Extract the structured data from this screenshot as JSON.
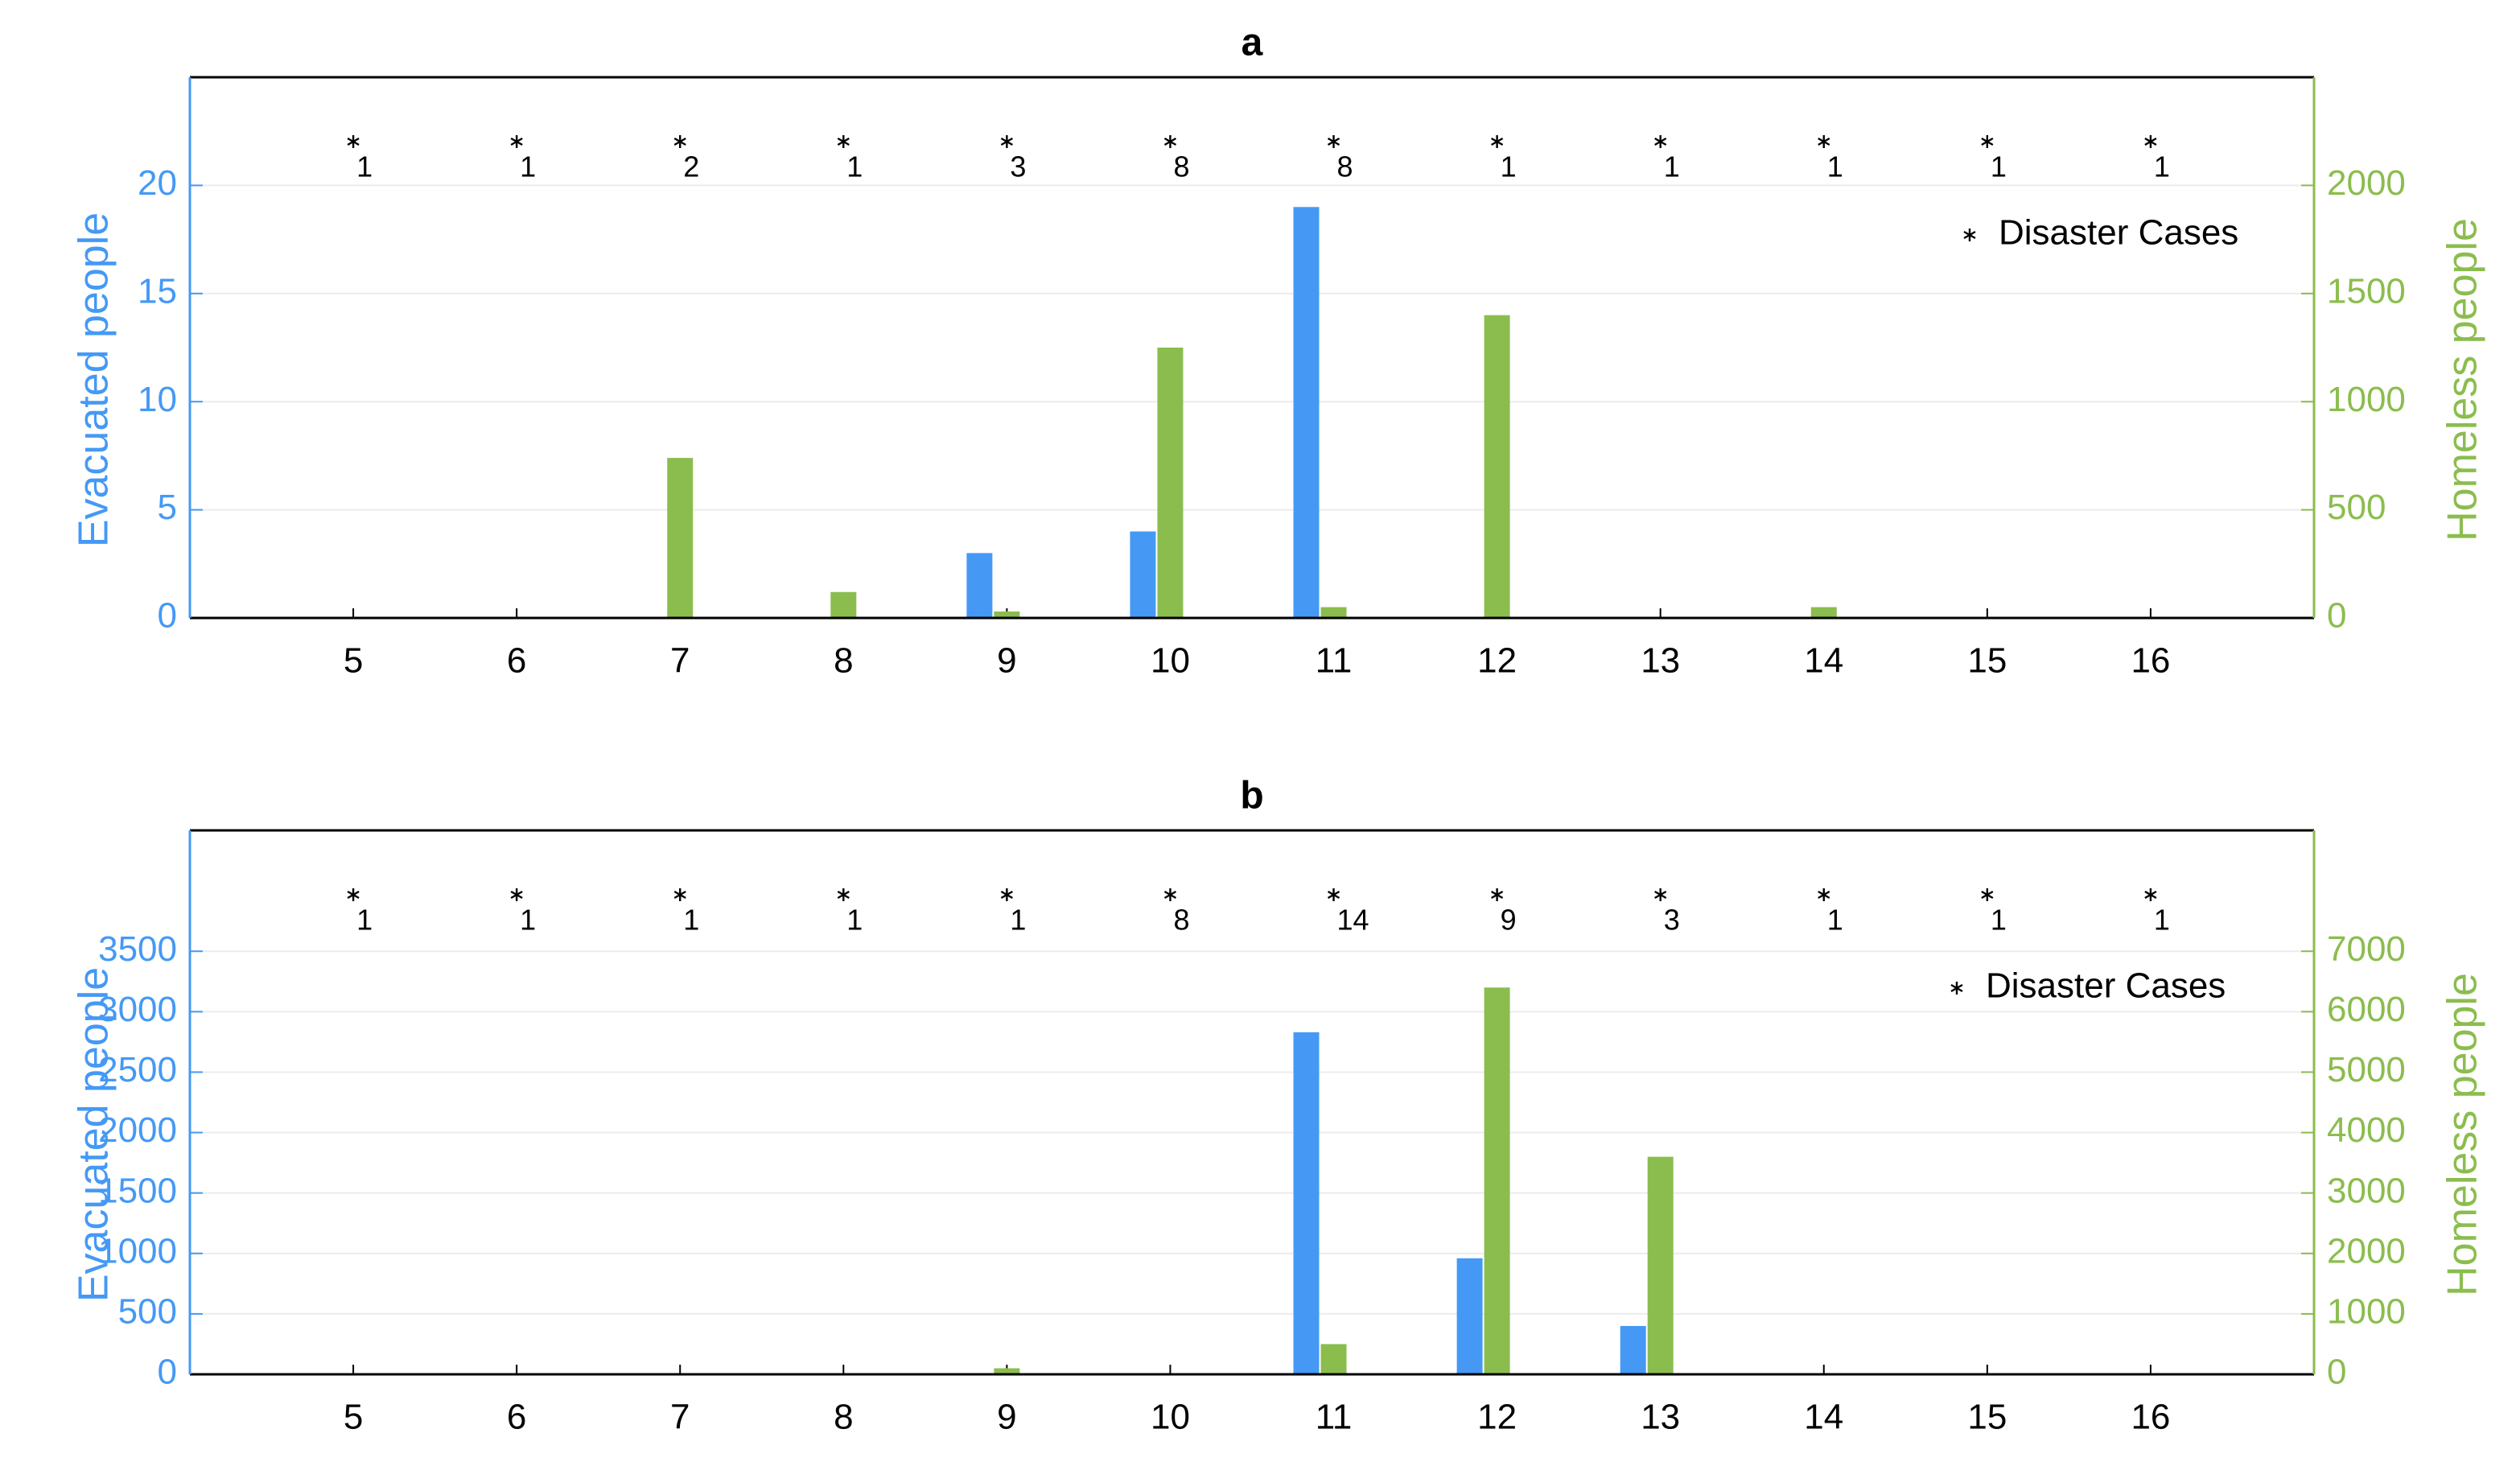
{
  "chart_data": [
    {
      "type": "bar",
      "title": "a",
      "categories": [
        "5",
        "6",
        "7",
        "8",
        "9",
        "10",
        "11",
        "12",
        "13",
        "14",
        "15",
        "16"
      ],
      "series": [
        {
          "name": "Evacuated people",
          "color": "#4599f5",
          "values": [
            0,
            0,
            0,
            0,
            3,
            4,
            19,
            0,
            0,
            0,
            0,
            0
          ]
        },
        {
          "name": "Homeless people",
          "color": "#8bbd4e",
          "axis": "y2",
          "values": [
            0,
            0,
            740,
            120,
            30,
            1250,
            50,
            1400,
            0,
            50,
            0,
            0
          ]
        }
      ],
      "disaster_cases": {
        "label": "Disaster Cases",
        "values": [
          1,
          1,
          2,
          1,
          3,
          8,
          8,
          1,
          1,
          1,
          1,
          1
        ]
      },
      "ylim": [
        0,
        25
      ],
      "yticks": [
        0,
        5,
        10,
        15,
        20
      ],
      "y2lim": [
        0,
        2500
      ],
      "y2ticks": [
        0,
        500,
        1000,
        1500,
        2000
      ],
      "grid": true
    },
    {
      "type": "bar",
      "title": "b",
      "categories": [
        "5",
        "6",
        "7",
        "8",
        "9",
        "10",
        "11",
        "12",
        "13",
        "14",
        "15",
        "16"
      ],
      "series": [
        {
          "name": "Evacuated people",
          "color": "#4599f5",
          "values": [
            0,
            0,
            0,
            0,
            0,
            10,
            2830,
            960,
            400,
            0,
            0,
            0
          ]
        },
        {
          "name": "Homeless people",
          "color": "#8bbd4e",
          "axis": "y2",
          "values": [
            0,
            0,
            0,
            0,
            100,
            0,
            500,
            6400,
            3600,
            0,
            0,
            0
          ]
        }
      ],
      "disaster_cases": {
        "label": "Disaster Cases",
        "values": [
          1,
          1,
          1,
          1,
          1,
          8,
          14,
          9,
          3,
          1,
          1,
          1
        ]
      },
      "ylim": [
        0,
        4500
      ],
      "yticks": [
        0,
        500,
        1000,
        1500,
        2000,
        2500,
        3000,
        3500
      ],
      "y2lim": [
        0,
        9000
      ],
      "y2ticks": [
        0,
        1000,
        2000,
        3000,
        4000,
        5000,
        6000,
        7000
      ],
      "grid": true
    }
  ]
}
